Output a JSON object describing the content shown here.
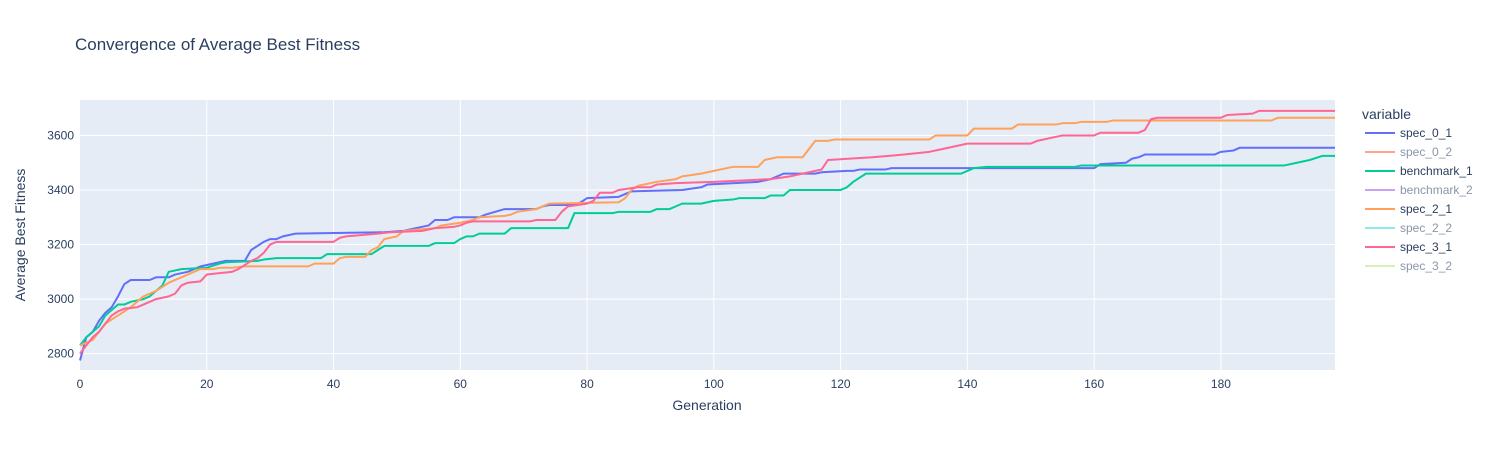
{
  "chart_data": {
    "type": "line",
    "title": "Convergence of Average Best Fitness",
    "xlabel": "Generation",
    "ylabel": "Average Best Fitness",
    "xlim": [
      0,
      198
    ],
    "ylim": [
      2740,
      3730
    ],
    "x_ticks": [
      0,
      20,
      40,
      60,
      80,
      100,
      120,
      140,
      160,
      180
    ],
    "y_ticks": [
      2800,
      3000,
      3200,
      3400,
      3600
    ],
    "grid": true,
    "legend_title": "variable",
    "legend_position": "right",
    "series": [
      {
        "name": "spec_0_1",
        "color": "#636efa",
        "visible": true,
        "points": [
          [
            0,
            2775
          ],
          [
            1,
            2860
          ],
          [
            2,
            2880
          ],
          [
            3,
            2920
          ],
          [
            4,
            2950
          ],
          [
            5,
            2970
          ],
          [
            6,
            3010
          ],
          [
            7,
            3055
          ],
          [
            8,
            3070
          ],
          [
            11,
            3070
          ],
          [
            12,
            3080
          ],
          [
            14,
            3080
          ],
          [
            15,
            3090
          ],
          [
            17,
            3100
          ],
          [
            18,
            3110
          ],
          [
            19,
            3120
          ],
          [
            21,
            3130
          ],
          [
            23,
            3140
          ],
          [
            26,
            3140
          ],
          [
            27,
            3180
          ],
          [
            29,
            3210
          ],
          [
            30,
            3220
          ],
          [
            31,
            3220
          ],
          [
            32,
            3230
          ],
          [
            34,
            3240
          ],
          [
            48,
            3245
          ],
          [
            51,
            3250
          ],
          [
            55,
            3270
          ],
          [
            56,
            3290
          ],
          [
            58,
            3290
          ],
          [
            59,
            3300
          ],
          [
            63,
            3300
          ],
          [
            64,
            3310
          ],
          [
            67,
            3330
          ],
          [
            72,
            3330
          ],
          [
            73,
            3340
          ],
          [
            74,
            3345
          ],
          [
            77,
            3345
          ],
          [
            78,
            3345
          ],
          [
            79,
            3355
          ],
          [
            80,
            3370
          ],
          [
            85,
            3375
          ],
          [
            86,
            3385
          ],
          [
            87,
            3395
          ],
          [
            95,
            3400
          ],
          [
            98,
            3410
          ],
          [
            99,
            3420
          ],
          [
            107,
            3430
          ],
          [
            109,
            3440
          ],
          [
            110,
            3450
          ],
          [
            111,
            3460
          ],
          [
            116,
            3460
          ],
          [
            117,
            3465
          ],
          [
            121,
            3470
          ],
          [
            122,
            3470
          ],
          [
            123,
            3475
          ],
          [
            127,
            3475
          ],
          [
            128,
            3480
          ],
          [
            140,
            3480
          ],
          [
            141,
            3480
          ],
          [
            160,
            3480
          ],
          [
            161,
            3495
          ],
          [
            165,
            3500
          ],
          [
            166,
            3515
          ],
          [
            167,
            3520
          ],
          [
            168,
            3530
          ],
          [
            179,
            3530
          ],
          [
            180,
            3540
          ],
          [
            182,
            3545
          ],
          [
            183,
            3555
          ],
          [
            198,
            3555
          ]
        ]
      },
      {
        "name": "spec_0_2",
        "color": "#fca394",
        "visible": false,
        "points": []
      },
      {
        "name": "benchmark_1",
        "color": "#00cc96",
        "visible": true,
        "points": [
          [
            0,
            2830
          ],
          [
            1,
            2860
          ],
          [
            3,
            2900
          ],
          [
            4,
            2940
          ],
          [
            5,
            2960
          ],
          [
            6,
            2980
          ],
          [
            7,
            2980
          ],
          [
            8,
            2990
          ],
          [
            10,
            3000
          ],
          [
            11,
            3010
          ],
          [
            13,
            3050
          ],
          [
            14,
            3100
          ],
          [
            16,
            3110
          ],
          [
            20,
            3115
          ],
          [
            22,
            3130
          ],
          [
            23,
            3135
          ],
          [
            28,
            3140
          ],
          [
            29,
            3145
          ],
          [
            31,
            3150
          ],
          [
            38,
            3150
          ],
          [
            39,
            3165
          ],
          [
            46,
            3165
          ],
          [
            47,
            3180
          ],
          [
            48,
            3195
          ],
          [
            55,
            3195
          ],
          [
            56,
            3205
          ],
          [
            59,
            3205
          ],
          [
            60,
            3220
          ],
          [
            61,
            3230
          ],
          [
            62,
            3230
          ],
          [
            63,
            3240
          ],
          [
            67,
            3240
          ],
          [
            68,
            3260
          ],
          [
            77,
            3260
          ],
          [
            78,
            3315
          ],
          [
            84,
            3315
          ],
          [
            85,
            3320
          ],
          [
            90,
            3320
          ],
          [
            91,
            3330
          ],
          [
            93,
            3330
          ],
          [
            94,
            3340
          ],
          [
            95,
            3350
          ],
          [
            98,
            3350
          ],
          [
            100,
            3360
          ],
          [
            103,
            3365
          ],
          [
            104,
            3370
          ],
          [
            108,
            3370
          ],
          [
            109,
            3380
          ],
          [
            111,
            3380
          ],
          [
            112,
            3400
          ],
          [
            120,
            3400
          ],
          [
            121,
            3410
          ],
          [
            122,
            3430
          ],
          [
            124,
            3460
          ],
          [
            139,
            3460
          ],
          [
            140,
            3470
          ],
          [
            141,
            3480
          ],
          [
            143,
            3485
          ],
          [
            157,
            3485
          ],
          [
            158,
            3490
          ],
          [
            162,
            3490
          ],
          [
            163,
            3490
          ],
          [
            190,
            3490
          ],
          [
            192,
            3500
          ],
          [
            194,
            3510
          ],
          [
            196,
            3525
          ],
          [
            198,
            3525
          ]
        ]
      },
      {
        "name": "benchmark_2",
        "color": "#c7a2f5",
        "visible": false,
        "points": []
      },
      {
        "name": "spec_2_1",
        "color": "#ffa15a",
        "visible": true,
        "points": [
          [
            0,
            2830
          ],
          [
            1,
            2840
          ],
          [
            2,
            2850
          ],
          [
            3,
            2880
          ],
          [
            4,
            2910
          ],
          [
            6,
            2940
          ],
          [
            8,
            2970
          ],
          [
            10,
            3010
          ],
          [
            12,
            3030
          ],
          [
            14,
            3060
          ],
          [
            16,
            3080
          ],
          [
            18,
            3100
          ],
          [
            19,
            3110
          ],
          [
            21,
            3110
          ],
          [
            22,
            3115
          ],
          [
            24,
            3115
          ],
          [
            26,
            3120
          ],
          [
            36,
            3120
          ],
          [
            37,
            3130
          ],
          [
            40,
            3130
          ],
          [
            41,
            3150
          ],
          [
            42,
            3155
          ],
          [
            45,
            3155
          ],
          [
            46,
            3180
          ],
          [
            47,
            3190
          ],
          [
            48,
            3220
          ],
          [
            50,
            3230
          ],
          [
            51,
            3250
          ],
          [
            56,
            3260
          ],
          [
            57,
            3270
          ],
          [
            60,
            3280
          ],
          [
            62,
            3290
          ],
          [
            63,
            3300
          ],
          [
            67,
            3305
          ],
          [
            68,
            3310
          ],
          [
            69,
            3320
          ],
          [
            72,
            3330
          ],
          [
            74,
            3350
          ],
          [
            85,
            3355
          ],
          [
            86,
            3370
          ],
          [
            87,
            3400
          ],
          [
            88,
            3415
          ],
          [
            91,
            3430
          ],
          [
            94,
            3440
          ],
          [
            95,
            3450
          ],
          [
            98,
            3460
          ],
          [
            100,
            3470
          ],
          [
            102,
            3480
          ],
          [
            103,
            3485
          ],
          [
            107,
            3485
          ],
          [
            108,
            3510
          ],
          [
            110,
            3520
          ],
          [
            114,
            3520
          ],
          [
            115,
            3550
          ],
          [
            116,
            3580
          ],
          [
            118,
            3580
          ],
          [
            119,
            3585
          ],
          [
            134,
            3585
          ],
          [
            135,
            3600
          ],
          [
            140,
            3600
          ],
          [
            141,
            3625
          ],
          [
            147,
            3625
          ],
          [
            148,
            3640
          ],
          [
            154,
            3640
          ],
          [
            155,
            3645
          ],
          [
            157,
            3645
          ],
          [
            158,
            3650
          ],
          [
            162,
            3650
          ],
          [
            163,
            3655
          ],
          [
            175,
            3655
          ],
          [
            176,
            3655
          ],
          [
            188,
            3655
          ],
          [
            189,
            3665
          ],
          [
            198,
            3665
          ]
        ]
      },
      {
        "name": "spec_2_2",
        "color": "#91eaea",
        "visible": false,
        "points": []
      },
      {
        "name": "spec_3_1",
        "color": "#ff6692",
        "visible": true,
        "points": [
          [
            0,
            2800
          ],
          [
            1,
            2830
          ],
          [
            2,
            2860
          ],
          [
            3,
            2880
          ],
          [
            4,
            2910
          ],
          [
            5,
            2940
          ],
          [
            6,
            2955
          ],
          [
            7,
            2965
          ],
          [
            9,
            2970
          ],
          [
            10,
            2980
          ],
          [
            11,
            2990
          ],
          [
            12,
            3000
          ],
          [
            14,
            3010
          ],
          [
            15,
            3020
          ],
          [
            16,
            3050
          ],
          [
            17,
            3060
          ],
          [
            19,
            3065
          ],
          [
            20,
            3090
          ],
          [
            22,
            3095
          ],
          [
            24,
            3100
          ],
          [
            25,
            3110
          ],
          [
            27,
            3140
          ],
          [
            28,
            3150
          ],
          [
            29,
            3170
          ],
          [
            30,
            3200
          ],
          [
            31,
            3210
          ],
          [
            40,
            3210
          ],
          [
            41,
            3225
          ],
          [
            42,
            3230
          ],
          [
            47,
            3240
          ],
          [
            49,
            3245
          ],
          [
            54,
            3250
          ],
          [
            56,
            3260
          ],
          [
            59,
            3265
          ],
          [
            60,
            3270
          ],
          [
            61,
            3280
          ],
          [
            62,
            3285
          ],
          [
            71,
            3285
          ],
          [
            72,
            3290
          ],
          [
            75,
            3290
          ],
          [
            76,
            3320
          ],
          [
            77,
            3340
          ],
          [
            80,
            3350
          ],
          [
            81,
            3360
          ],
          [
            82,
            3390
          ],
          [
            84,
            3390
          ],
          [
            85,
            3400
          ],
          [
            88,
            3410
          ],
          [
            90,
            3410
          ],
          [
            91,
            3420
          ],
          [
            94,
            3425
          ],
          [
            100,
            3430
          ],
          [
            109,
            3440
          ],
          [
            112,
            3450
          ],
          [
            114,
            3460
          ],
          [
            116,
            3470
          ],
          [
            117,
            3475
          ],
          [
            118,
            3510
          ],
          [
            125,
            3520
          ],
          [
            130,
            3530
          ],
          [
            134,
            3540
          ],
          [
            136,
            3550
          ],
          [
            138,
            3560
          ],
          [
            140,
            3570
          ],
          [
            150,
            3570
          ],
          [
            151,
            3580
          ],
          [
            155,
            3600
          ],
          [
            160,
            3600
          ],
          [
            161,
            3610
          ],
          [
            167,
            3610
          ],
          [
            168,
            3620
          ],
          [
            169,
            3660
          ],
          [
            170,
            3665
          ],
          [
            180,
            3665
          ],
          [
            181,
            3675
          ],
          [
            185,
            3680
          ],
          [
            186,
            3690
          ],
          [
            198,
            3690
          ]
        ]
      },
      {
        "name": "spec_3_2",
        "color": "#d6f2b2",
        "visible": false,
        "points": []
      }
    ]
  }
}
